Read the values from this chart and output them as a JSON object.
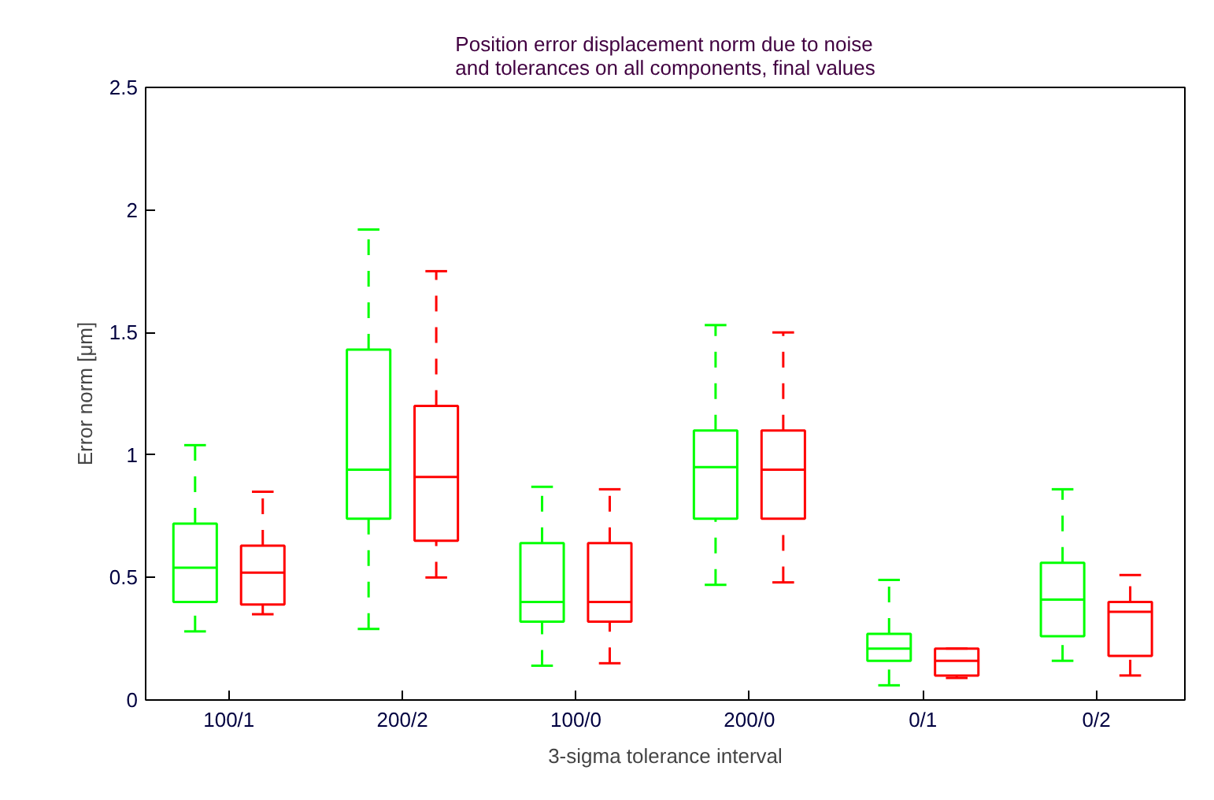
{
  "chart_data": {
    "type": "box",
    "title": "Position error displacement norm due to noise\nand tolerances on all components, final values",
    "xlabel": "3-sigma tolerance interval",
    "ylabel": "Error norm [μm]",
    "categories": [
      "100/1",
      "200/2",
      "100/0",
      "200/0",
      "0/1",
      "0/2"
    ],
    "ylim": [
      0,
      2.5
    ],
    "yticks": [
      0,
      0.5,
      1,
      1.5,
      2,
      2.5
    ],
    "grid": false,
    "series": [
      {
        "color": "#00ff00",
        "boxes": [
          {
            "low": 0.28,
            "q1": 0.4,
            "median": 0.54,
            "q3": 0.72,
            "high": 1.04
          },
          {
            "low": 0.29,
            "q1": 0.74,
            "median": 0.94,
            "q3": 1.43,
            "high": 1.92
          },
          {
            "low": 0.14,
            "q1": 0.32,
            "median": 0.4,
            "q3": 0.64,
            "high": 0.87
          },
          {
            "low": 0.47,
            "q1": 0.74,
            "median": 0.95,
            "q3": 1.1,
            "high": 1.53
          },
          {
            "low": 0.06,
            "q1": 0.16,
            "median": 0.21,
            "q3": 0.27,
            "high": 0.49
          },
          {
            "low": 0.16,
            "q1": 0.26,
            "median": 0.41,
            "q3": 0.56,
            "high": 0.86
          }
        ]
      },
      {
        "color": "#ff0000",
        "boxes": [
          {
            "low": 0.35,
            "q1": 0.39,
            "median": 0.52,
            "q3": 0.63,
            "high": 0.85
          },
          {
            "low": 0.5,
            "q1": 0.65,
            "median": 0.91,
            "q3": 1.2,
            "high": 1.75
          },
          {
            "low": 0.15,
            "q1": 0.32,
            "median": 0.4,
            "q3": 0.64,
            "high": 0.86
          },
          {
            "low": 0.48,
            "q1": 0.74,
            "median": 0.94,
            "q3": 1.1,
            "high": 1.5
          },
          {
            "low": 0.09,
            "q1": 0.1,
            "median": 0.16,
            "q3": 0.21,
            "high": 0.21
          },
          {
            "low": 0.1,
            "q1": 0.18,
            "median": 0.36,
            "q3": 0.4,
            "high": 0.51
          }
        ]
      }
    ]
  }
}
